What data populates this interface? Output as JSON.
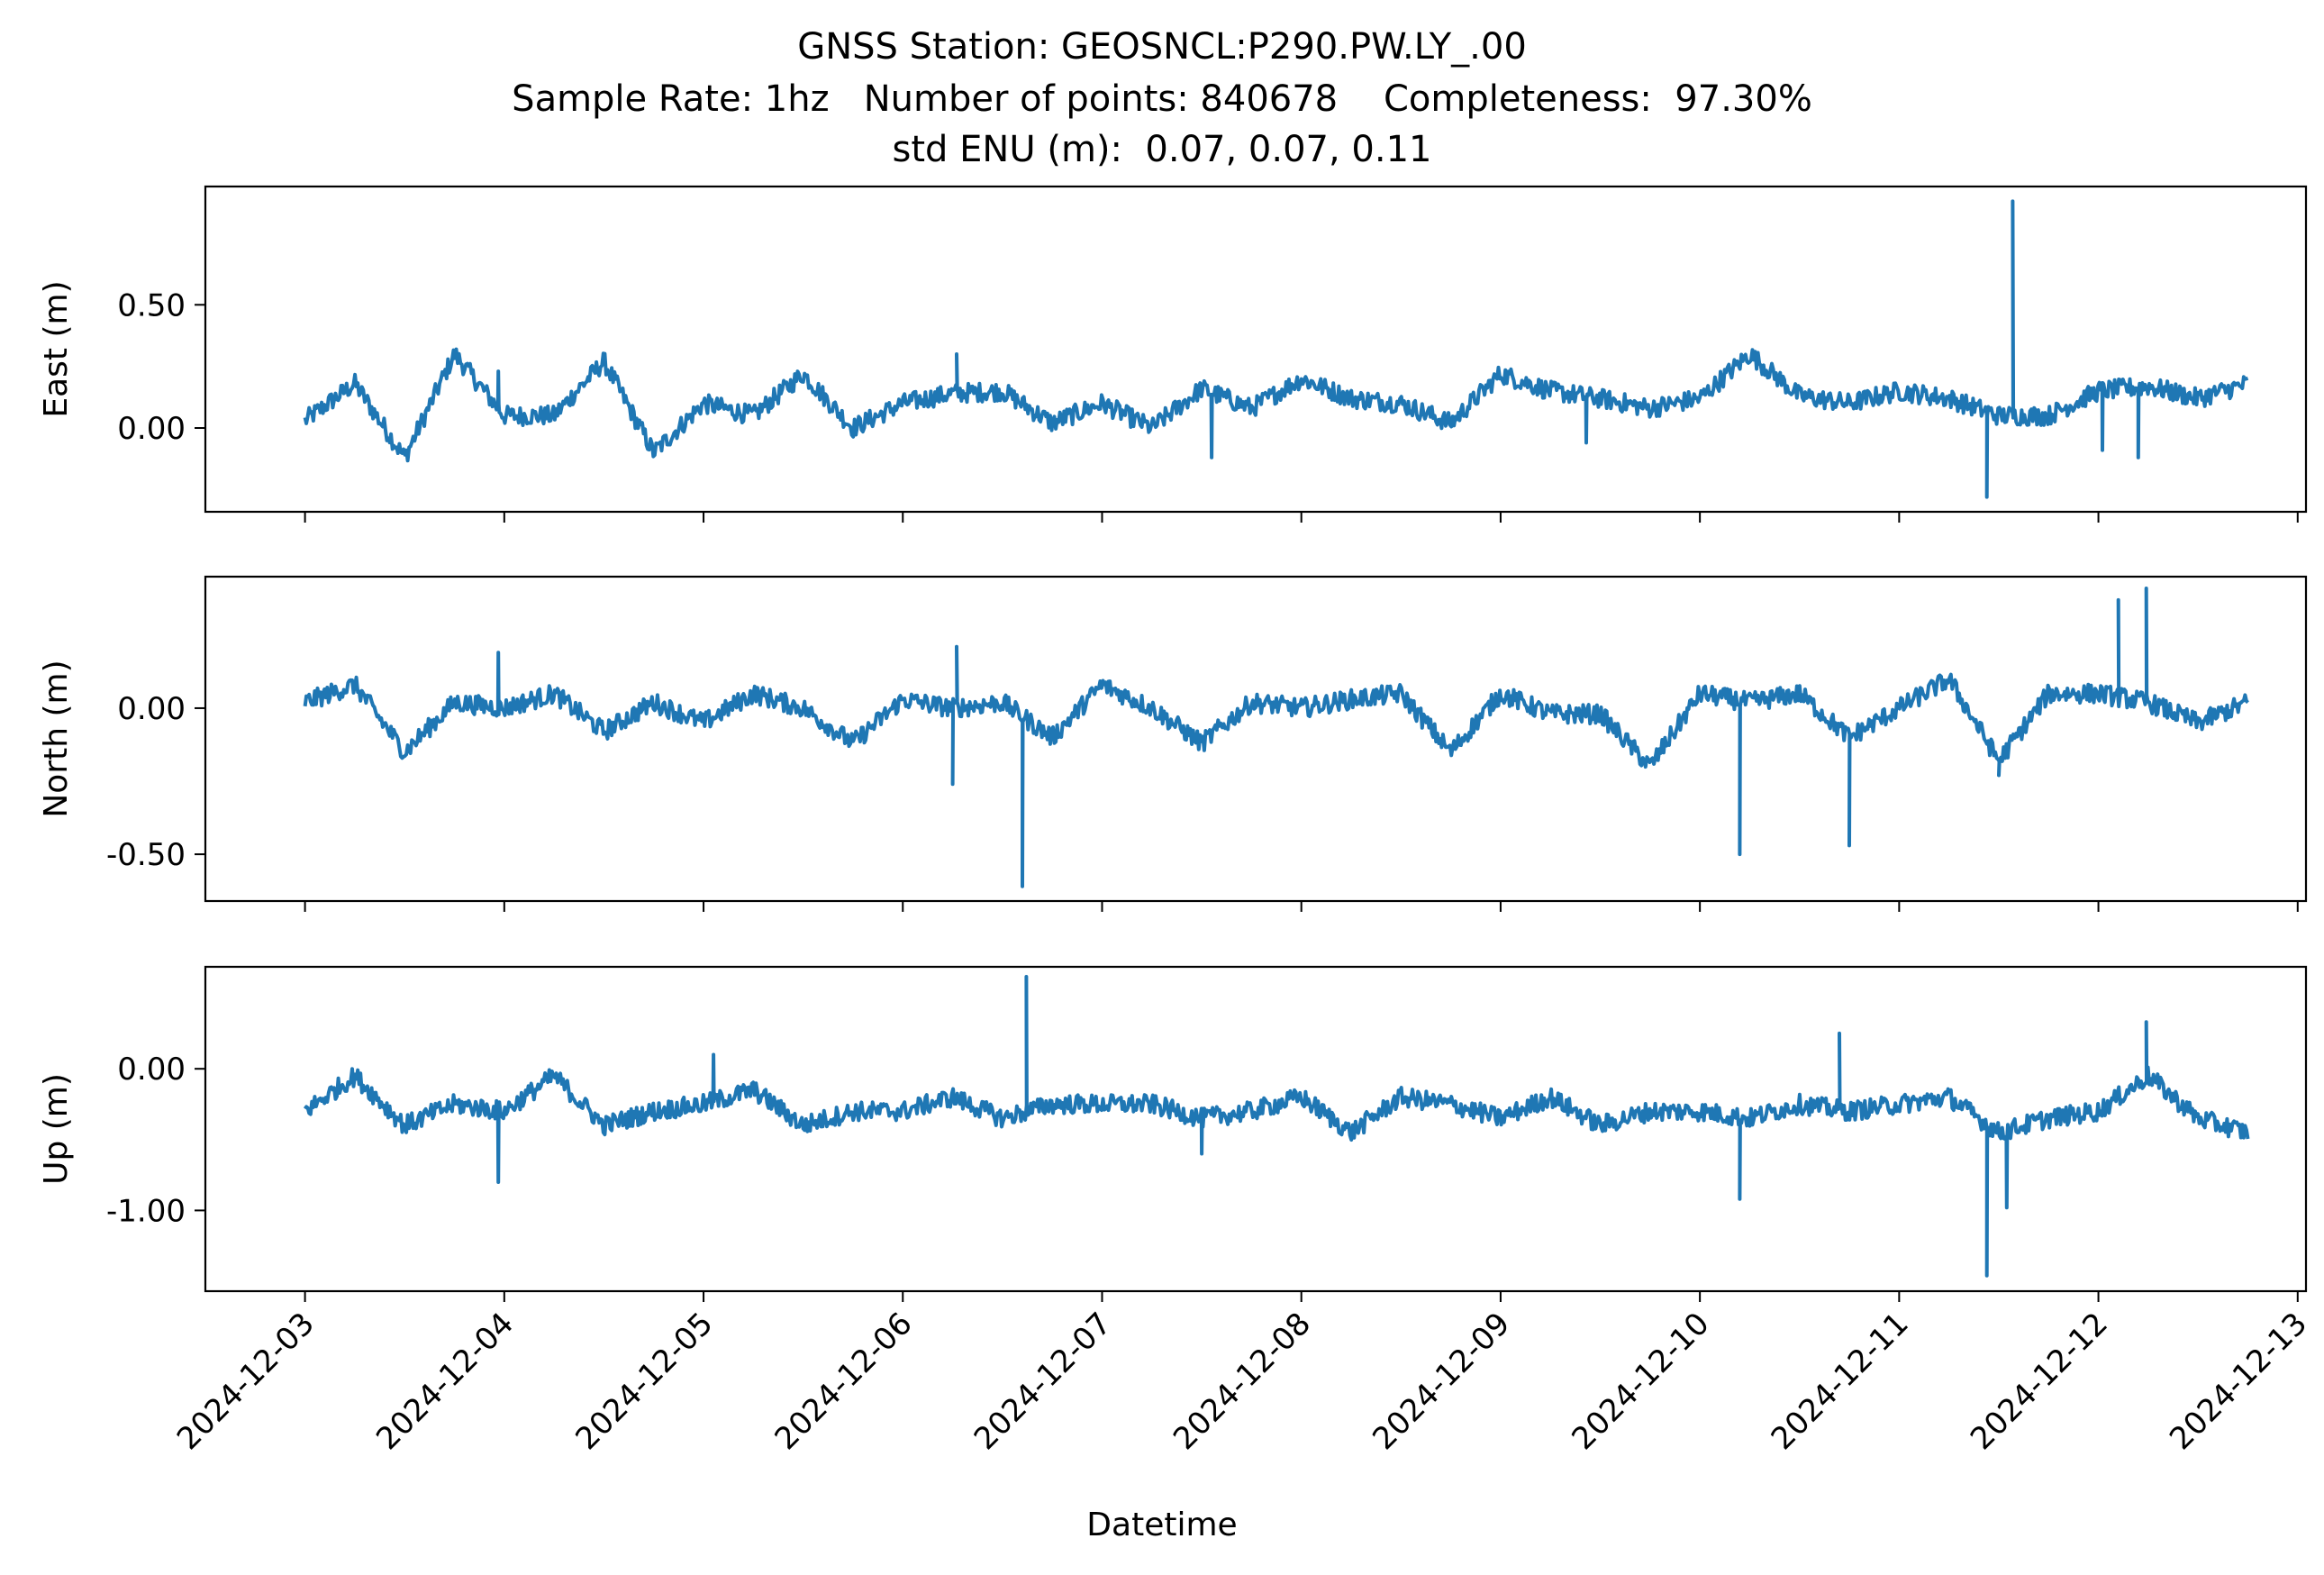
{
  "chart_data": {
    "type": "line",
    "title_lines": [
      "GNSS Station: GEOSNCL:P290.PW.LY_.00",
      "Sample Rate: 1hz   Number of points: 840678    Completeness:  97.30%",
      "std ENU (m):  0.07, 0.07, 0.11"
    ],
    "xlabel": "Datetime",
    "line_color": "#1f77b4",
    "x_ticks": [
      "2024-12-03",
      "2024-12-04",
      "2024-12-05",
      "2024-12-06",
      "2024-12-07",
      "2024-12-08",
      "2024-12-09",
      "2024-12-10",
      "2024-12-11",
      "2024-12-12",
      "2024-12-13"
    ],
    "x_range": [
      "2024-12-02 12:00",
      "2024-12-13 01:00"
    ],
    "data_range": [
      "2024-12-03 00:00",
      "2024-12-12 18:00"
    ],
    "panels": [
      {
        "ylabel": "East (m)",
        "ylim": [
          -0.34,
          0.98
        ],
        "y_ticks": [
          0.0,
          0.5
        ],
        "y_tick_labels": [
          "0.00",
          "0.50"
        ],
        "x": [
          0,
          0.25,
          0.5,
          0.75,
          1,
          1.25,
          1.5,
          1.75,
          2,
          2.25,
          2.5,
          2.75,
          3,
          3.25,
          3.5,
          3.75,
          4,
          4.25,
          4.5,
          4.75,
          5,
          5.25,
          5.5,
          5.75,
          6,
          6.25,
          6.5,
          6.75,
          7,
          7.25,
          7.5,
          7.75,
          8,
          8.25,
          8.5,
          8.75,
          9,
          9.25,
          9.5,
          9.75
        ],
        "values": [
          0.03,
          0.18,
          -0.12,
          0.3,
          0.05,
          0.05,
          0.27,
          -0.1,
          0.1,
          0.05,
          0.22,
          0.0,
          0.1,
          0.14,
          0.15,
          0.02,
          0.1,
          0.0,
          0.16,
          0.08,
          0.2,
          0.12,
          0.1,
          0.02,
          0.22,
          0.15,
          0.12,
          0.08,
          0.12,
          0.3,
          0.13,
          0.1,
          0.15,
          0.12,
          0.05,
          0.05,
          0.15,
          0.17,
          0.12,
          0.18
        ],
        "spikes": [
          {
            "x": 0.97,
            "y": 0.23
          },
          {
            "x": 3.27,
            "y": 0.3
          },
          {
            "x": 4.55,
            "y": -0.12
          },
          {
            "x": 6.43,
            "y": -0.06
          },
          {
            "x": 8.44,
            "y": -0.28
          },
          {
            "x": 8.57,
            "y": 0.92
          },
          {
            "x": 9.2,
            "y": -0.12
          },
          {
            "x": 9.02,
            "y": -0.09
          }
        ]
      },
      {
        "ylabel": "North (m)",
        "ylim": [
          -0.66,
          0.45
        ],
        "y_ticks": [
          0.0,
          -0.5
        ],
        "y_tick_labels": [
          "0.00",
          "-0.50"
        ],
        "x": [
          0,
          0.25,
          0.5,
          0.75,
          1,
          1.25,
          1.5,
          1.75,
          2,
          2.25,
          2.5,
          2.75,
          3,
          3.25,
          3.5,
          3.75,
          4,
          4.25,
          4.5,
          4.75,
          5,
          5.25,
          5.5,
          5.75,
          6,
          6.25,
          6.5,
          6.75,
          7,
          7.25,
          7.5,
          7.75,
          8,
          8.25,
          8.5,
          8.75,
          9,
          9.25,
          9.5,
          9.75
        ],
        "values": [
          0.02,
          0.08,
          -0.15,
          0.02,
          0.0,
          0.05,
          -0.08,
          0.02,
          -0.05,
          0.05,
          0.0,
          -0.12,
          0.03,
          0.0,
          0.02,
          -0.1,
          0.08,
          0.0,
          -0.12,
          0.02,
          0.0,
          0.03,
          0.05,
          -0.15,
          0.05,
          -0.02,
          -0.02,
          -0.2,
          0.05,
          0.02,
          0.05,
          -0.1,
          0.0,
          0.1,
          -0.18,
          0.05,
          0.05,
          0.02,
          -0.05,
          0.02
        ],
        "spikes": [
          {
            "x": 0.97,
            "y": 0.19
          },
          {
            "x": 3.27,
            "y": 0.21
          },
          {
            "x": 3.25,
            "y": -0.26
          },
          {
            "x": 3.6,
            "y": -0.61
          },
          {
            "x": 7.2,
            "y": -0.5
          },
          {
            "x": 7.75,
            "y": -0.47
          },
          {
            "x": 9.1,
            "y": 0.37
          },
          {
            "x": 9.24,
            "y": 0.41
          },
          {
            "x": 8.5,
            "y": -0.23
          }
        ]
      },
      {
        "ylabel": "Up (m)",
        "ylim": [
          -1.57,
          0.72
        ],
        "y_ticks": [
          0.0,
          -1.0
        ],
        "y_tick_labels": [
          "0.00",
          "-1.00"
        ],
        "x": [
          0,
          0.25,
          0.5,
          0.75,
          1,
          1.25,
          1.5,
          1.75,
          2,
          2.25,
          2.5,
          2.75,
          3,
          3.25,
          3.5,
          3.75,
          4,
          4.25,
          4.5,
          4.75,
          5,
          5.25,
          5.5,
          5.75,
          6,
          6.25,
          6.5,
          6.75,
          7,
          7.25,
          7.5,
          7.75,
          8,
          8.25,
          8.5,
          8.75,
          9,
          9.25,
          9.5,
          9.75
        ],
        "values": [
          -0.3,
          -0.05,
          -0.4,
          -0.25,
          -0.3,
          -0.05,
          -0.4,
          -0.3,
          -0.25,
          -0.15,
          -0.4,
          -0.3,
          -0.3,
          -0.2,
          -0.35,
          -0.25,
          -0.25,
          -0.25,
          -0.35,
          -0.3,
          -0.2,
          -0.45,
          -0.2,
          -0.25,
          -0.35,
          -0.2,
          -0.4,
          -0.3,
          -0.3,
          -0.35,
          -0.25,
          -0.3,
          -0.25,
          -0.2,
          -0.45,
          -0.35,
          -0.3,
          -0.05,
          -0.35,
          -0.45
        ],
        "spikes": [
          {
            "x": 0.97,
            "y": -0.8
          },
          {
            "x": 2.05,
            "y": 0.1
          },
          {
            "x": 3.62,
            "y": 0.65
          },
          {
            "x": 4.5,
            "y": -0.6
          },
          {
            "x": 7.2,
            "y": -0.92
          },
          {
            "x": 7.7,
            "y": 0.25
          },
          {
            "x": 8.44,
            "y": -1.46
          },
          {
            "x": 8.54,
            "y": -0.98
          },
          {
            "x": 9.24,
            "y": 0.33
          }
        ]
      }
    ]
  }
}
